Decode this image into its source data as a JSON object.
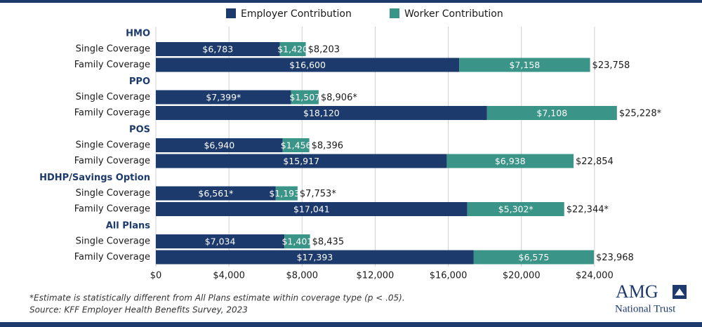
{
  "chart_data": {
    "type": "bar",
    "orientation": "horizontal",
    "stacked": true,
    "groups": [
      {
        "name": "HMO",
        "categories": [
          "Single Coverage",
          "Family Coverage"
        ]
      },
      {
        "name": "PPO",
        "categories": [
          "Single Coverage",
          "Family Coverage"
        ]
      },
      {
        "name": "POS",
        "categories": [
          "Single Coverage",
          "Family Coverage"
        ]
      },
      {
        "name": "HDHP/Savings Option",
        "categories": [
          "Single Coverage",
          "Family Coverage"
        ]
      },
      {
        "name": "All Plans",
        "categories": [
          "Single Coverage",
          "Family Coverage"
        ]
      }
    ],
    "series": [
      {
        "name": "Employer Contribution",
        "color": "#1c3a6c",
        "values": [
          6783,
          16600,
          7399,
          18120,
          6940,
          15917,
          6561,
          17041,
          7034,
          17393
        ],
        "value_labels": [
          "$6,783",
          "$16,600",
          "$7,399*",
          "$18,120",
          "$6,940",
          "$15,917",
          "$6,561*",
          "$17,041",
          "$7,034",
          "$17,393"
        ]
      },
      {
        "name": "Worker Contribution",
        "color": "#3b9488",
        "values": [
          1420,
          7158,
          1507,
          7108,
          1456,
          6938,
          1193,
          5302,
          1401,
          6575
        ],
        "value_labels": [
          "$1,420",
          "$7,158",
          "$1,507",
          "$7,108",
          "$1,456",
          "$6,938",
          "$1,193*",
          "$5,302*",
          "$1,401",
          "$6,575"
        ]
      }
    ],
    "totals": [
      8203,
      23758,
      8906,
      25228,
      8396,
      22854,
      7753,
      22344,
      8435,
      23968
    ],
    "total_labels": [
      "$8,203",
      "$23,758",
      "$8,906*",
      "$25,228*",
      "$8,396",
      "$22,854",
      "$7,753*",
      "$22,344*",
      "$8,435",
      "$23,968"
    ],
    "xlim": [
      0,
      28000
    ],
    "xticks": [
      {
        "value": 0,
        "label": "$0"
      },
      {
        "value": 4000,
        "label": "$4,000"
      },
      {
        "value": 8000,
        "label": "$8,000"
      },
      {
        "value": 12000,
        "label": "$12,000"
      },
      {
        "value": 16000,
        "label": "$16,000"
      },
      {
        "value": 20000,
        "label": "$20,000"
      },
      {
        "value": 24000,
        "label": "$24,000"
      }
    ],
    "grid": true,
    "legend": "top",
    "footnote": "*Estimate is statistically different from All Plans estimate within coverage type (p < .05).",
    "source": "Source: KFF Employer Health Benefits Survey, 2023"
  },
  "logo": {
    "name": "AMG",
    "subtitle": "National Trust"
  }
}
